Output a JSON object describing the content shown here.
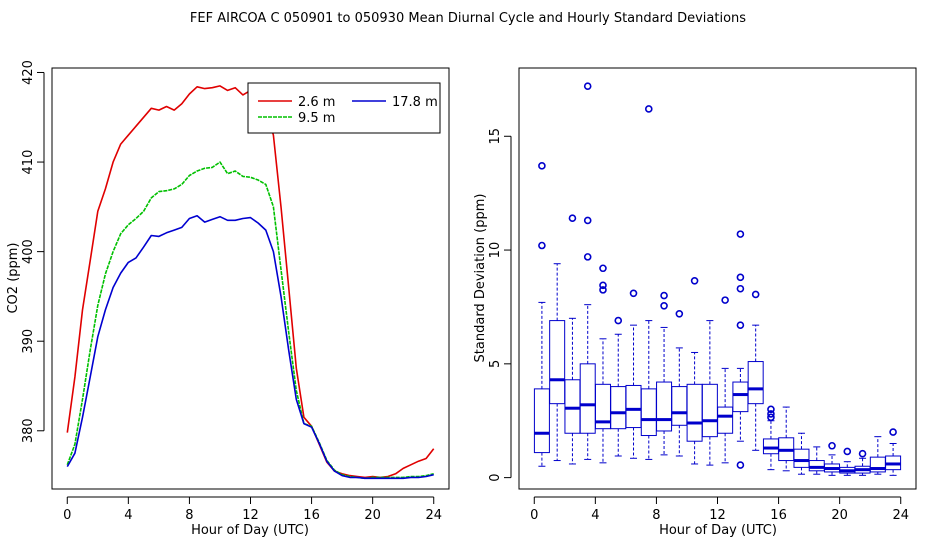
{
  "figure": {
    "title": "FEF   AIRCOA C   050901 to 050930   Mean Diurnal Cycle and Hourly Standard Deviations"
  },
  "chart_data": [
    {
      "type": "line",
      "xlabel": "Hour of Day (UTC)",
      "ylabel": "CO2 (ppm)",
      "xlim": [
        -1,
        25
      ],
      "ylim": [
        373.5,
        420.5
      ],
      "xticks": [
        0,
        4,
        8,
        12,
        16,
        20,
        24
      ],
      "yticks": [
        380,
        390,
        400,
        410,
        420
      ],
      "legend": {
        "position": "top-right",
        "entries": [
          "2.6 m",
          "9.5 m",
          "17.8 m"
        ]
      },
      "x": [
        0,
        0.5,
        1,
        1.5,
        2,
        2.5,
        3,
        3.5,
        4,
        4.5,
        5,
        5.5,
        6,
        6.5,
        7,
        7.5,
        8,
        8.5,
        9,
        9.5,
        10,
        10.5,
        11,
        11.5,
        12,
        12.5,
        13,
        13.5,
        14,
        14.5,
        15,
        15.5,
        16,
        16.5,
        17,
        17.5,
        18,
        18.5,
        19,
        19.5,
        20,
        20.5,
        21,
        21.5,
        22,
        22.5,
        23,
        23.5,
        24
      ],
      "series": [
        {
          "name": "2.6 m",
          "color": "#e00000",
          "values": [
            379.8,
            386.0,
            393.5,
            399.0,
            404.5,
            407.0,
            410.0,
            412.0,
            413.0,
            414.0,
            415.0,
            416.0,
            415.8,
            416.2,
            415.8,
            416.5,
            417.6,
            418.4,
            418.2,
            418.3,
            418.5,
            418.0,
            418.3,
            417.5,
            418.0,
            416.5,
            416.0,
            413.0,
            405.0,
            396.0,
            387.0,
            381.5,
            380.5,
            378.5,
            376.5,
            375.5,
            375.2,
            375.0,
            374.9,
            374.8,
            374.9,
            374.8,
            374.9,
            375.2,
            375.8,
            376.2,
            376.6,
            376.9,
            378.0
          ]
        },
        {
          "name": "9.5 m",
          "color": "#00c000",
          "values": [
            376.2,
            378.5,
            383.5,
            389.0,
            394.0,
            397.5,
            400.0,
            402.0,
            403.0,
            403.7,
            404.5,
            406.0,
            406.7,
            406.8,
            407.0,
            407.5,
            408.5,
            409.0,
            409.3,
            409.4,
            410.0,
            408.7,
            409.0,
            408.4,
            408.3,
            408.0,
            407.5,
            405.0,
            398.0,
            391.0,
            384.5,
            380.8,
            380.5,
            378.7,
            376.7,
            375.6,
            375.1,
            374.9,
            374.8,
            374.7,
            374.8,
            374.8,
            374.8,
            374.8,
            374.8,
            374.9,
            374.9,
            375.0,
            375.2
          ]
        },
        {
          "name": "17.8 m",
          "color": "#0000d0",
          "values": [
            376.0,
            377.5,
            381.5,
            386.0,
            390.5,
            393.5,
            396.0,
            397.6,
            398.8,
            399.3,
            400.5,
            401.8,
            401.7,
            402.1,
            402.4,
            402.7,
            403.7,
            404.0,
            403.3,
            403.6,
            403.9,
            403.5,
            403.5,
            403.7,
            403.8,
            403.2,
            402.4,
            400.0,
            395.0,
            389.0,
            383.5,
            380.8,
            380.4,
            378.6,
            376.6,
            375.5,
            375.0,
            374.8,
            374.8,
            374.7,
            374.7,
            374.7,
            374.7,
            374.7,
            374.7,
            374.8,
            374.8,
            374.9,
            375.1
          ]
        }
      ]
    },
    {
      "type": "box",
      "xlabel": "Hour of Day (UTC)",
      "ylabel": "Standard Deviation (ppm)",
      "xlim": [
        -1,
        25
      ],
      "ylim": [
        -0.5,
        18
      ],
      "xticks": [
        0,
        4,
        8,
        12,
        16,
        20,
        24
      ],
      "yticks": [
        0,
        5,
        10,
        15
      ],
      "color": "#0000cc",
      "boxes": [
        {
          "x": 0.5,
          "q1": 1.1,
          "median": 1.95,
          "q3": 3.9,
          "low": 0.5,
          "high": 7.7,
          "outliers": [
            10.2,
            13.7
          ]
        },
        {
          "x": 1.5,
          "q1": 3.25,
          "median": 4.3,
          "q3": 6.9,
          "low": 0.75,
          "high": 9.4,
          "outliers": []
        },
        {
          "x": 2.5,
          "q1": 1.95,
          "median": 3.05,
          "q3": 4.3,
          "low": 0.6,
          "high": 7.0,
          "outliers": [
            11.4
          ]
        },
        {
          "x": 3.5,
          "q1": 1.95,
          "median": 3.2,
          "q3": 5.0,
          "low": 0.8,
          "high": 7.6,
          "outliers": [
            9.7,
            11.3,
            17.2
          ]
        },
        {
          "x": 4.5,
          "q1": 2.15,
          "median": 2.45,
          "q3": 4.1,
          "low": 0.65,
          "high": 6.1,
          "outliers": [
            8.25,
            8.45,
            9.2
          ]
        },
        {
          "x": 5.5,
          "q1": 2.15,
          "median": 2.85,
          "q3": 4.0,
          "low": 0.95,
          "high": 6.3,
          "outliers": [
            6.9
          ]
        },
        {
          "x": 6.5,
          "q1": 2.2,
          "median": 3.0,
          "q3": 4.05,
          "low": 0.85,
          "high": 6.7,
          "outliers": [
            8.1
          ]
        },
        {
          "x": 7.5,
          "q1": 1.85,
          "median": 2.55,
          "q3": 3.9,
          "low": 0.8,
          "high": 6.9,
          "outliers": [
            16.2
          ]
        },
        {
          "x": 8.5,
          "q1": 2.05,
          "median": 2.55,
          "q3": 4.2,
          "low": 1.0,
          "high": 6.6,
          "outliers": [
            7.55,
            8.0
          ]
        },
        {
          "x": 9.5,
          "q1": 2.3,
          "median": 2.85,
          "q3": 4.0,
          "low": 0.95,
          "high": 5.7,
          "outliers": [
            7.2
          ]
        },
        {
          "x": 10.5,
          "q1": 1.6,
          "median": 2.4,
          "q3": 4.1,
          "low": 0.6,
          "high": 5.5,
          "outliers": [
            8.65
          ]
        },
        {
          "x": 11.5,
          "q1": 1.8,
          "median": 2.5,
          "q3": 4.1,
          "low": 0.55,
          "high": 6.9,
          "outliers": []
        },
        {
          "x": 12.5,
          "q1": 1.95,
          "median": 2.7,
          "q3": 3.1,
          "low": 0.65,
          "high": 4.8,
          "outliers": [
            7.8
          ]
        },
        {
          "x": 13.5,
          "q1": 2.9,
          "median": 3.65,
          "q3": 4.2,
          "low": 1.6,
          "high": 4.8,
          "outliers": [
            0.55,
            6.7,
            8.3,
            8.8,
            10.7
          ]
        },
        {
          "x": 14.5,
          "q1": 3.25,
          "median": 3.9,
          "q3": 5.1,
          "low": 1.2,
          "high": 6.7,
          "outliers": [
            8.05
          ]
        },
        {
          "x": 15.5,
          "q1": 1.05,
          "median": 1.3,
          "q3": 1.7,
          "low": 0.35,
          "high": 2.5,
          "outliers": [
            2.65,
            2.8,
            3.0
          ]
        },
        {
          "x": 16.5,
          "q1": 0.75,
          "median": 1.2,
          "q3": 1.75,
          "low": 0.3,
          "high": 3.1,
          "outliers": []
        },
        {
          "x": 17.5,
          "q1": 0.45,
          "median": 0.75,
          "q3": 1.25,
          "low": 0.15,
          "high": 1.95,
          "outliers": []
        },
        {
          "x": 18.5,
          "q1": 0.3,
          "median": 0.45,
          "q3": 0.75,
          "low": 0.15,
          "high": 1.35,
          "outliers": []
        },
        {
          "x": 19.5,
          "q1": 0.25,
          "median": 0.4,
          "q3": 0.6,
          "low": 0.1,
          "high": 1.0,
          "outliers": [
            1.4
          ]
        },
        {
          "x": 20.5,
          "q1": 0.2,
          "median": 0.3,
          "q3": 0.45,
          "low": 0.1,
          "high": 0.7,
          "outliers": [
            1.15
          ]
        },
        {
          "x": 21.5,
          "q1": 0.2,
          "median": 0.35,
          "q3": 0.5,
          "low": 0.1,
          "high": 0.85,
          "outliers": [
            1.05
          ]
        },
        {
          "x": 22.5,
          "q1": 0.25,
          "median": 0.4,
          "q3": 0.9,
          "low": 0.15,
          "high": 1.8,
          "outliers": []
        },
        {
          "x": 23.5,
          "q1": 0.35,
          "median": 0.6,
          "q3": 0.95,
          "low": 0.1,
          "high": 1.5,
          "outliers": [
            2.0
          ]
        }
      ]
    }
  ]
}
